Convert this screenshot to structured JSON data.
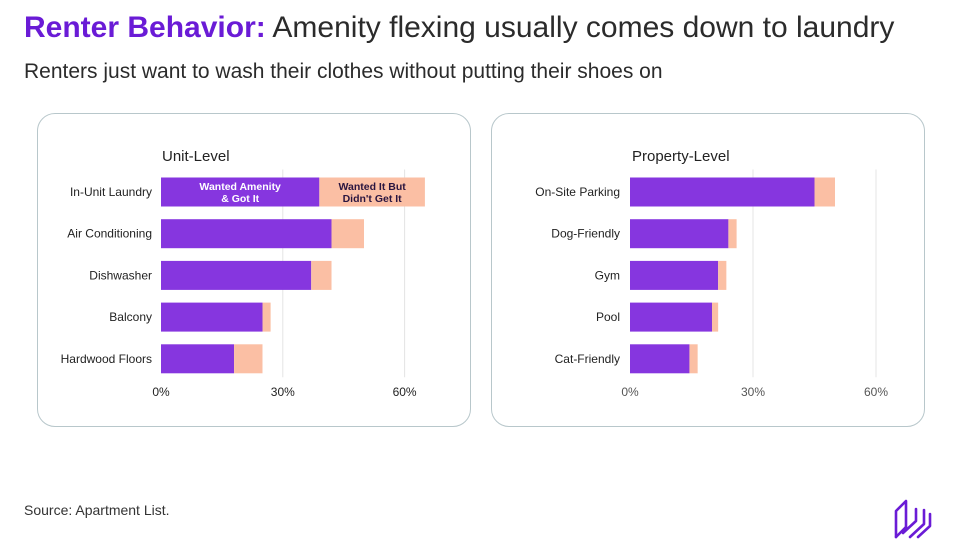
{
  "header": {
    "title_accent": "Renter Behavior:",
    "title_rest": "Amenity flexing usually comes down to laundry",
    "subtitle": "Renters just want to wash their clothes without putting their shoes on"
  },
  "colors": {
    "accent": "#6a1bd6",
    "got_it": "#8636df",
    "didnt_get_it": "#fbbfa4",
    "grid": "#e4e4e4",
    "border": "#b8c7cb"
  },
  "chart_data": [
    {
      "type": "bar",
      "orientation": "horizontal",
      "stacked": true,
      "title": "Unit-Level",
      "categories": [
        "In-Unit Laundry",
        "Air Conditioning",
        "Dishwasher",
        "Balcony",
        "Hardwood Floors"
      ],
      "series": [
        {
          "name": "Wanted Amenity & Got It",
          "values": [
            39,
            42,
            37,
            25,
            18
          ]
        },
        {
          "name": "Wanted It But Didn't Get It",
          "values": [
            26,
            8,
            5,
            2,
            7
          ]
        }
      ],
      "series_labels": [
        {
          "line1": "Wanted Amenity",
          "line2": "& Got It"
        },
        {
          "line1": "Wanted It But",
          "line2": "Didn't Get It"
        }
      ],
      "x_ticks": [
        "0%",
        "30%",
        "60%"
      ],
      "x_tick_values": [
        0,
        30,
        60
      ],
      "xlim": [
        0,
        65
      ],
      "grid": true
    },
    {
      "type": "bar",
      "orientation": "horizontal",
      "stacked": true,
      "title": "Property-Level",
      "categories": [
        "On-Site Parking",
        "Dog-Friendly",
        "Gym",
        "Pool",
        "Cat-Friendly"
      ],
      "series": [
        {
          "name": "Wanted Amenity & Got It",
          "values": [
            45,
            24,
            21.5,
            20,
            14.5
          ]
        },
        {
          "name": "Wanted It But Didn't Get It",
          "values": [
            5,
            2,
            2,
            1.5,
            2
          ]
        }
      ],
      "x_ticks": [
        "0%",
        "30%",
        "60%"
      ],
      "x_tick_values": [
        0,
        30,
        60
      ],
      "xlim": [
        0,
        65
      ],
      "grid": true
    }
  ],
  "footer": {
    "source": "Source: Apartment List.",
    "logo_icon": "apartment-list-logo-icon"
  }
}
